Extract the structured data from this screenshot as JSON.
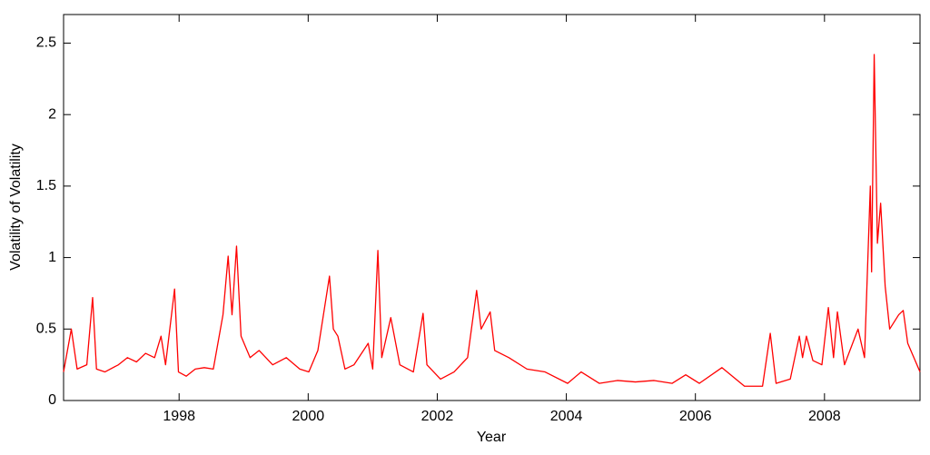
{
  "chart_data": {
    "type": "line",
    "xlabel": "Year",
    "ylabel": "Volatility of Volatility",
    "x": [
      1996.21,
      1996.33,
      1996.42,
      1996.57,
      1996.66,
      1996.72,
      1996.85,
      1997.06,
      1997.2,
      1997.34,
      1997.48,
      1997.62,
      1997.72,
      1997.79,
      1997.93,
      1997.99,
      1998.11,
      1998.25,
      1998.39,
      1998.53,
      1998.68,
      1998.76,
      1998.82,
      1998.89,
      1998.96,
      1999.1,
      1999.24,
      1999.45,
      1999.66,
      1999.87,
      2000.01,
      2000.15,
      2000.33,
      2000.39,
      2000.46,
      2000.57,
      2000.71,
      2000.93,
      2001.0,
      2001.08,
      2001.14,
      2001.28,
      2001.42,
      2001.63,
      2001.78,
      2001.84,
      2002.05,
      2002.26,
      2002.47,
      2002.61,
      2002.68,
      2002.82,
      2002.89,
      2003.11,
      2003.39,
      2003.67,
      2004.02,
      2004.23,
      2004.51,
      2004.79,
      2005.07,
      2005.36,
      2005.64,
      2005.85,
      2006.06,
      2006.41,
      2006.76,
      2007.04,
      2007.16,
      2007.25,
      2007.47,
      2007.61,
      2007.66,
      2007.72,
      2007.82,
      2007.96,
      2008.06,
      2008.14,
      2008.2,
      2008.31,
      2008.52,
      2008.62,
      2008.71,
      2008.73,
      2008.77,
      2008.82,
      2008.87,
      2008.94,
      2009.01,
      2009.15,
      2009.22,
      2009.29,
      2009.48
    ],
    "series": [
      {
        "name": "Volatility of Volatility",
        "color": "#ff0000",
        "values": [
          0.2,
          0.5,
          0.22,
          0.25,
          0.72,
          0.22,
          0.2,
          0.25,
          0.3,
          0.27,
          0.33,
          0.3,
          0.45,
          0.25,
          0.78,
          0.2,
          0.17,
          0.22,
          0.23,
          0.22,
          0.6,
          1.01,
          0.6,
          1.08,
          0.45,
          0.3,
          0.35,
          0.25,
          0.3,
          0.22,
          0.2,
          0.35,
          0.87,
          0.5,
          0.45,
          0.22,
          0.25,
          0.4,
          0.22,
          1.05,
          0.3,
          0.58,
          0.25,
          0.2,
          0.61,
          0.25,
          0.15,
          0.2,
          0.3,
          0.77,
          0.5,
          0.62,
          0.35,
          0.3,
          0.22,
          0.2,
          0.12,
          0.2,
          0.12,
          0.14,
          0.13,
          0.14,
          0.12,
          0.18,
          0.12,
          0.23,
          0.1,
          0.1,
          0.47,
          0.12,
          0.15,
          0.45,
          0.3,
          0.45,
          0.28,
          0.25,
          0.65,
          0.3,
          0.62,
          0.25,
          0.5,
          0.3,
          1.5,
          0.9,
          2.42,
          1.1,
          1.38,
          0.8,
          0.5,
          0.6,
          0.63,
          0.4,
          0.2
        ]
      }
    ],
    "xlim": [
      1996.21,
      2009.48
    ],
    "xticks": [
      1998,
      2000,
      2002,
      2004,
      2006,
      2008
    ],
    "ylim": [
      0,
      2.7
    ],
    "yticks": [
      0,
      0.5,
      1,
      1.5,
      2,
      2.5
    ]
  }
}
